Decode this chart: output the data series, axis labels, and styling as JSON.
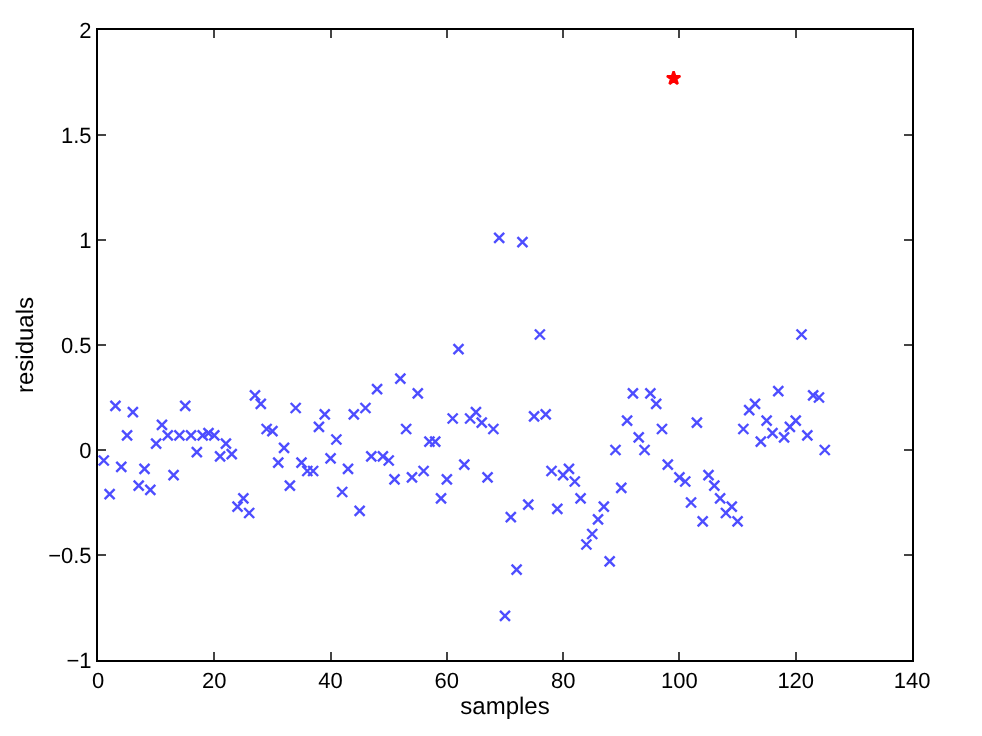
{
  "chart_data": {
    "type": "scatter",
    "xlabel": "samples",
    "ylabel": "residuals",
    "xlim": [
      0,
      140
    ],
    "xticks": [
      0,
      20,
      40,
      60,
      80,
      100,
      120,
      140
    ],
    "ylim": [
      -1,
      2
    ],
    "yticks": [
      -1,
      -0.5,
      0,
      0.5,
      1,
      1.5,
      2
    ],
    "series": [
      {
        "color": "#4d4dff",
        "marker": "cross",
        "x": [
          1,
          2,
          3,
          4,
          5,
          6,
          7,
          8,
          9,
          10,
          11,
          12,
          13,
          14,
          15,
          16,
          17,
          18,
          19,
          20,
          21,
          22,
          23,
          24,
          25,
          26,
          27,
          28,
          29,
          30,
          31,
          32,
          33,
          34,
          35,
          36,
          37,
          38,
          39,
          40,
          41,
          42,
          43,
          44,
          45,
          46,
          47,
          48,
          49,
          50,
          51,
          52,
          53,
          54,
          55,
          56,
          57,
          58,
          59,
          60,
          61,
          62,
          63,
          64,
          65,
          66,
          67,
          68,
          69,
          70,
          71,
          72,
          73,
          74,
          75,
          76,
          77,
          78,
          79,
          80,
          81,
          82,
          83,
          84,
          85,
          86,
          87,
          88,
          89,
          90,
          91,
          92,
          93,
          94,
          95,
          96,
          97,
          98,
          100,
          101,
          102,
          103,
          104,
          105,
          106,
          107,
          108,
          109,
          110,
          111,
          112,
          113,
          114,
          115,
          116,
          117,
          118,
          119,
          120,
          121,
          122,
          123,
          124,
          125
        ],
        "values": [
          -0.05,
          -0.21,
          0.21,
          -0.08,
          0.07,
          0.18,
          -0.17,
          -0.09,
          -0.19,
          0.03,
          0.12,
          0.07,
          -0.12,
          0.07,
          0.21,
          0.07,
          -0.01,
          0.07,
          0.08,
          0.07,
          -0.03,
          0.03,
          -0.02,
          -0.27,
          -0.23,
          -0.3,
          0.26,
          0.22,
          0.1,
          0.09,
          -0.06,
          0.01,
          -0.17,
          0.2,
          -0.06,
          -0.1,
          -0.1,
          0.11,
          0.17,
          -0.04,
          0.05,
          -0.2,
          -0.09,
          0.17,
          -0.29,
          0.2,
          -0.03,
          0.29,
          -0.03,
          -0.05,
          -0.14,
          0.34,
          0.1,
          -0.13,
          0.27,
          -0.1,
          0.04,
          0.04,
          -0.23,
          -0.14,
          0.15,
          0.48,
          -0.07,
          0.15,
          0.18,
          0.13,
          -0.13,
          0.1,
          1.01,
          -0.79,
          -0.32,
          -0.57,
          0.99,
          -0.26,
          0.16,
          0.55,
          0.17,
          -0.1,
          -0.28,
          -0.12,
          -0.09,
          -0.15,
          -0.23,
          -0.45,
          -0.4,
          -0.33,
          -0.27,
          -0.53,
          0.0,
          -0.18,
          0.14,
          0.27,
          0.06,
          0.0,
          0.27,
          0.22,
          0.1,
          -0.07,
          -0.13,
          -0.15,
          -0.25,
          0.13,
          -0.34,
          -0.12,
          -0.17,
          -0.23,
          -0.3,
          -0.27,
          -0.34,
          0.1,
          0.19,
          0.22,
          0.04,
          0.14,
          0.08,
          0.28,
          0.06,
          0.11,
          0.14,
          0.55,
          0.07,
          0.26,
          0.25,
          0.0
        ]
      },
      {
        "color": "#ff0000",
        "marker": "star",
        "x": [
          99
        ],
        "values": [
          1.77
        ]
      }
    ]
  }
}
